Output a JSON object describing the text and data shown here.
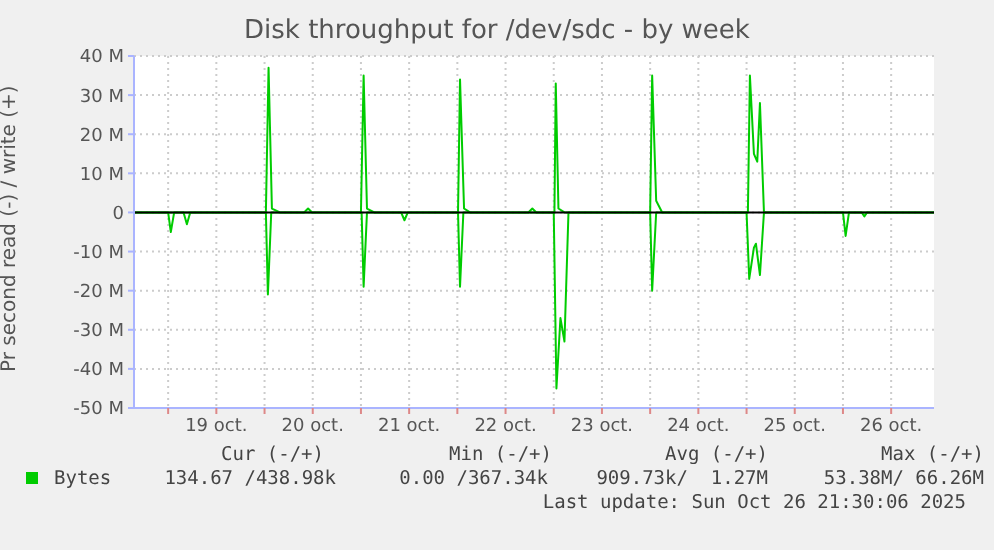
{
  "chart_data": {
    "type": "line",
    "title": "Disk throughput for /dev/sdc - by week",
    "ylabel": "Pr second read (-) / write (+)",
    "xlim": [
      "2025-10-18T15:30",
      "2025-10-26T22:40"
    ],
    "xticks": [
      {
        "value": "2025-10-19T00:00",
        "label": null
      },
      {
        "value": "2025-10-19T12:00",
        "label": "19 oct."
      },
      {
        "value": "2025-10-20T00:00",
        "label": null
      },
      {
        "value": "2025-10-20T12:00",
        "label": "20 oct."
      },
      {
        "value": "2025-10-21T00:00",
        "label": null
      },
      {
        "value": "2025-10-21T12:00",
        "label": "21 oct."
      },
      {
        "value": "2025-10-22T00:00",
        "label": null
      },
      {
        "value": "2025-10-22T12:00",
        "label": "22 oct."
      },
      {
        "value": "2025-10-23T00:00",
        "label": null
      },
      {
        "value": "2025-10-23T12:00",
        "label": "23 oct."
      },
      {
        "value": "2025-10-24T00:00",
        "label": null
      },
      {
        "value": "2025-10-24T12:00",
        "label": "24 oct."
      },
      {
        "value": "2025-10-25T00:00",
        "label": null
      },
      {
        "value": "2025-10-25T12:00",
        "label": "25 oct."
      },
      {
        "value": "2025-10-26T00:00",
        "label": null
      },
      {
        "value": "2025-10-26T12:00",
        "label": "26 oct."
      }
    ],
    "ylim": [
      -50,
      40
    ],
    "yticks": [
      {
        "value": -50,
        "label": "-50 M"
      },
      {
        "value": -40,
        "label": "-40 M"
      },
      {
        "value": -30,
        "label": "-30 M"
      },
      {
        "value": -20,
        "label": "-20 M"
      },
      {
        "value": -10,
        "label": "-10 M"
      },
      {
        "value": 0,
        "label": "0"
      },
      {
        "value": 10,
        "label": "10 M"
      },
      {
        "value": 20,
        "label": "20 M"
      },
      {
        "value": 30,
        "label": "30 M"
      },
      {
        "value": 40,
        "label": "40 M"
      }
    ],
    "grid": true,
    "legend": "bottom",
    "marker": "none",
    "line_style": "solid",
    "ref_lines": [
      {
        "axis": "y",
        "value": 0,
        "color": "#000000"
      }
    ],
    "series": [
      {
        "name": "Bytes",
        "color": "#00cc00",
        "x": [
          "2025-10-18T15:30",
          "2025-10-20T00:20",
          "2025-10-20T01:00",
          "2025-10-20T01:50",
          "2025-10-20T03:50",
          "2025-10-20T09:50",
          "2025-10-20T10:50",
          "2025-10-20T11:50",
          "2025-10-21T00:00",
          "2025-10-21T00:40",
          "2025-10-21T01:30",
          "2025-10-21T03:20",
          "2025-10-22T00:10",
          "2025-10-22T00:40",
          "2025-10-22T01:40",
          "2025-10-22T03:10",
          "2025-10-22T17:40",
          "2025-10-22T18:40",
          "2025-10-22T19:40",
          "2025-10-23T00:10",
          "2025-10-23T00:30",
          "2025-10-23T01:10",
          "2025-10-23T02:40",
          "2025-10-24T00:00",
          "2025-10-24T00:30",
          "2025-10-24T01:30",
          "2025-10-24T03:00",
          "2025-10-25T00:20",
          "2025-10-25T00:50",
          "2025-10-25T01:50",
          "2025-10-25T02:40",
          "2025-10-25T03:20",
          "2025-10-25T04:20",
          "2025-10-26T22:40"
        ],
        "values": [
          0,
          0,
          37,
          1,
          0,
          0,
          1,
          0,
          0,
          35,
          1,
          0,
          0,
          34,
          1,
          0,
          0,
          1,
          0,
          0,
          33,
          1,
          0,
          0,
          35,
          3,
          0,
          0,
          35,
          15,
          13,
          28,
          0,
          0
        ]
      },
      {
        "color": "#00cc00",
        "x": [
          "2025-10-18T15:30",
          "2025-10-19T00:00",
          "2025-10-19T00:40",
          "2025-10-19T01:30",
          "2025-10-19T03:50",
          "2025-10-19T04:40",
          "2025-10-19T05:30",
          "2025-10-20T00:20",
          "2025-10-20T00:50",
          "2025-10-20T01:40",
          "2025-10-21T00:10",
          "2025-10-21T00:40",
          "2025-10-21T01:30",
          "2025-10-21T10:00",
          "2025-10-21T10:50",
          "2025-10-21T11:40",
          "2025-10-22T00:10",
          "2025-10-22T00:40",
          "2025-10-22T01:30",
          "2025-10-23T00:00",
          "2025-10-23T00:40",
          "2025-10-23T01:40",
          "2025-10-23T02:40",
          "2025-10-23T03:40",
          "2025-10-24T00:00",
          "2025-10-24T00:30",
          "2025-10-24T01:30",
          "2025-10-25T00:00",
          "2025-10-25T00:40",
          "2025-10-25T01:50",
          "2025-10-25T02:20",
          "2025-10-25T03:20",
          "2025-10-25T04:20",
          "2025-10-26T00:00",
          "2025-10-26T00:40",
          "2025-10-26T01:30",
          "2025-10-26T04:40",
          "2025-10-26T05:20",
          "2025-10-26T06:00",
          "2025-10-26T22:40"
        ],
        "values": [
          0,
          0,
          -5,
          0,
          0,
          -3,
          0,
          0,
          -21,
          0,
          0,
          -19,
          0,
          0,
          -2,
          0,
          0,
          -19,
          0,
          0,
          -45,
          -27,
          -33,
          0,
          0,
          -20,
          0,
          0,
          -17,
          -9,
          -8,
          -16,
          0,
          0,
          -6,
          0,
          0,
          -1,
          0,
          0
        ]
      }
    ],
    "annotations": [
      "Cur (-/+)",
      "Min (-/+)",
      "Avg (-/+)",
      "Max (-/+)",
      "134.67 /438.98k",
      "0.00 /367.34k",
      "909.73k/  1.27M",
      "53.38M/ 66.26M",
      "Last update: Sun Oct 26 21:30:06 2025"
    ]
  }
}
